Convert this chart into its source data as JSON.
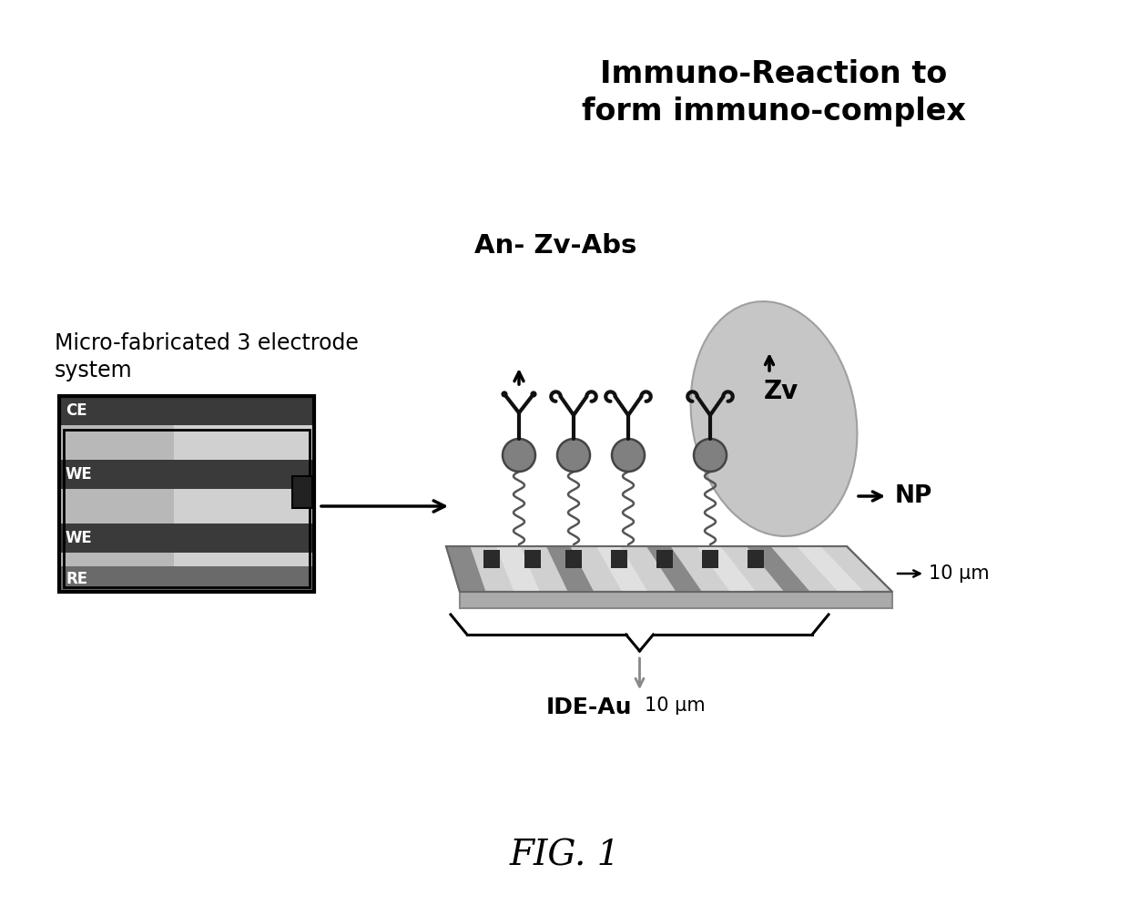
{
  "title": "FIG. 1",
  "bg_color": "#ffffff",
  "text_immuno_reaction": "Immuno-Reaction to\nform immuno-complex",
  "text_an_zv_abs": "An- Zv-Abs",
  "text_zv": "Zv",
  "text_np": "NP",
  "text_ide_au": "IDE-Au",
  "text_10um_horiz": "10 μm",
  "text_10um_vert": "10 μm",
  "text_micro_fab": "Micro-fabricated 3 electrode\nsystem",
  "text_ce": "CE",
  "text_we1": "WE",
  "text_we2": "WE",
  "text_re": "RE"
}
